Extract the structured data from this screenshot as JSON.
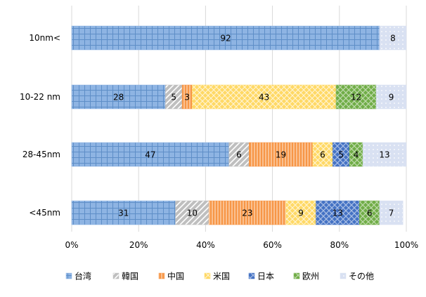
{
  "chart_data": {
    "type": "bar",
    "orientation": "horizontal",
    "stacked": "percent",
    "categories": [
      "10nm<",
      "10-22 nm",
      "28-45nm",
      "<45nm"
    ],
    "series": [
      {
        "name": "台湾",
        "values": [
          92,
          28,
          47,
          31
        ],
        "color": "#8eb4e3",
        "pattern": "grid"
      },
      {
        "name": "韓国",
        "values": [
          0,
          5,
          6,
          10
        ],
        "color": "#bfbfbf",
        "pattern": "diagonal"
      },
      {
        "name": "中国",
        "values": [
          0,
          3,
          19,
          23
        ],
        "color": "#f79646",
        "pattern": "vertical"
      },
      {
        "name": "米国",
        "values": [
          0,
          43,
          6,
          9
        ],
        "color": "#ffd966",
        "pattern": "diamond"
      },
      {
        "name": "日本",
        "values": [
          0,
          0,
          5,
          13
        ],
        "color": "#4472c4",
        "pattern": "diamond-dense"
      },
      {
        "name": "欧州",
        "values": [
          0,
          12,
          4,
          6
        ],
        "color": "#70ad47",
        "pattern": "diamond-dense"
      },
      {
        "name": "その他",
        "values": [
          8,
          9,
          13,
          7
        ],
        "color": "#d9e1f2",
        "pattern": "dots"
      }
    ],
    "xlim": [
      0,
      100
    ],
    "xticks": [
      "0%",
      "20%",
      "40%",
      "60%",
      "80%",
      "100%"
    ],
    "grid": true,
    "legend": "bottom",
    "title": "",
    "xlabel": "",
    "ylabel": ""
  }
}
